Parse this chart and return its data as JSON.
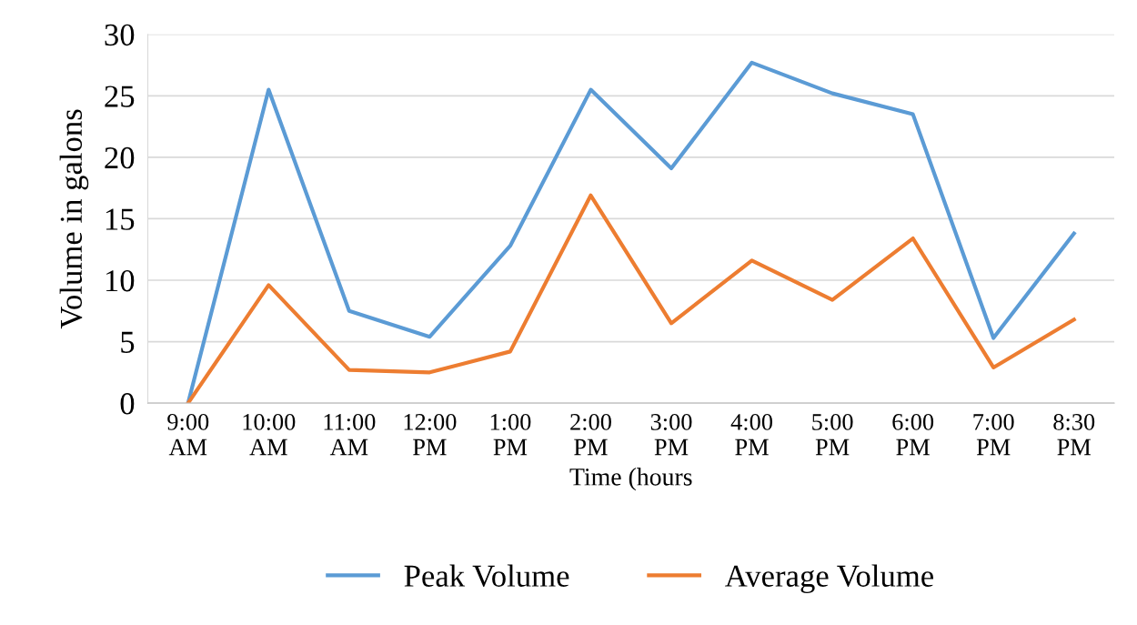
{
  "chart_data": {
    "type": "line",
    "xlabel": "Time (hours",
    "ylabel": "Volume in galons",
    "categories": [
      "9:00\nAM",
      "10:00\nAM",
      "11:00\nAM",
      "12:00\nPM",
      "1:00\nPM",
      "2:00\nPM",
      "3:00\nPM",
      "4:00\nPM",
      "5:00\nPM",
      "6:00\nPM",
      "7:00\nPM",
      "8:30\nPM"
    ],
    "series": [
      {
        "name": "Peak Volume",
        "color": "#5b9bd5",
        "values": [
          0,
          25.5,
          7.5,
          5.4,
          12.8,
          25.5,
          19.1,
          27.7,
          25.2,
          23.5,
          5.3,
          13.8
        ]
      },
      {
        "name": "Average Volume",
        "color": "#ed7d31",
        "values": [
          0,
          9.6,
          2.7,
          2.5,
          4.2,
          16.9,
          6.5,
          11.6,
          8.4,
          13.4,
          2.9,
          6.8
        ]
      }
    ],
    "ylim": [
      0,
      30
    ],
    "yticks": [
      0,
      5,
      10,
      15,
      20,
      25,
      30
    ],
    "grid": "y",
    "legend": "bottom",
    "marker": "none",
    "line_style": "solid"
  }
}
